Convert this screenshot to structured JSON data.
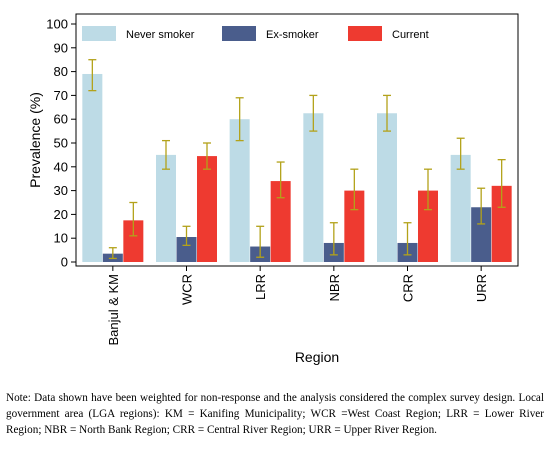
{
  "chart_data": {
    "type": "bar",
    "categories": [
      "Banjul & KM",
      "WCR",
      "LRR",
      "NBR",
      "CRR",
      "URR"
    ],
    "series": [
      {
        "name": "Never smoker",
        "color": "#bddbe6",
        "values": [
          79,
          45,
          60,
          62.5,
          62.5,
          45
        ],
        "ci_low": [
          72,
          39,
          51,
          55,
          55,
          39
        ],
        "ci_high": [
          85,
          51,
          69,
          70,
          70,
          52
        ]
      },
      {
        "name": "Ex-smoker",
        "color": "#4a5d8c",
        "values": [
          3.5,
          10.5,
          6.5,
          8,
          8,
          23
        ],
        "ci_low": [
          1.5,
          7,
          2,
          3,
          3,
          16
        ],
        "ci_high": [
          6,
          15,
          15,
          16.5,
          16.5,
          31
        ]
      },
      {
        "name": "Current",
        "color": "#ee3a30",
        "values": [
          17.5,
          44.5,
          34,
          30,
          30,
          32
        ],
        "ci_low": [
          11,
          39,
          27,
          22,
          22,
          23
        ],
        "ci_high": [
          25,
          50,
          42,
          39,
          39,
          43
        ]
      }
    ],
    "ylabel": "Prevalence (%)",
    "xlabel": "Region",
    "ylim": [
      0,
      100
    ],
    "yticks": [
      0,
      10,
      20,
      30,
      40,
      50,
      60,
      70,
      80,
      90,
      100
    ],
    "errorbar_color": "#b3a21a",
    "grid": false,
    "legend_position": "top"
  },
  "note": "Note: Data shown have been weighted for non-response and the analysis considered the complex survey design. Local government area (LGA regions): KM = Kanifing Municipality; WCR =West Coast Region; LRR = Lower River Region; NBR = North Bank Region; CRR = Central River Region; URR = Upper River Region."
}
